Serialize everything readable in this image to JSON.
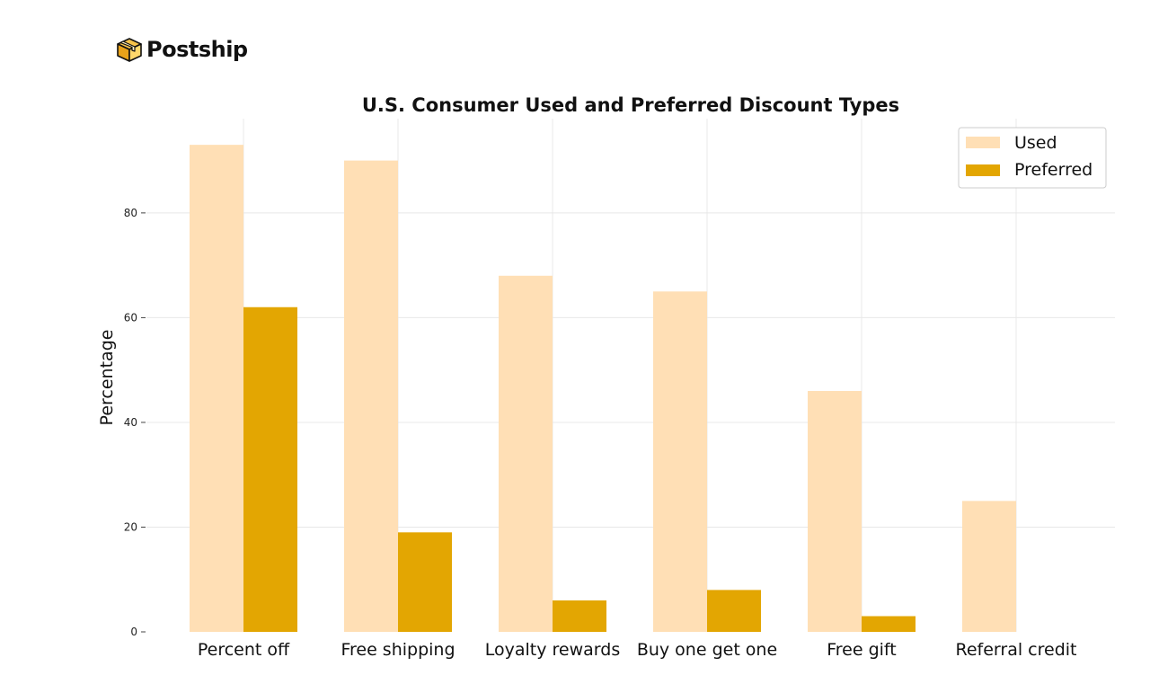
{
  "brand": {
    "name": "Postship",
    "icon": "package-icon"
  },
  "colors": {
    "used": "#FFDFB5",
    "preferred": "#E3A602",
    "grid": "#e8e8e8"
  },
  "chart_data": {
    "type": "bar",
    "title": "U.S. Consumer Used and Preferred Discount Types",
    "xlabel": "",
    "ylabel": "Percentage",
    "ylim": [
      0,
      98
    ],
    "yticks": [
      0,
      20,
      40,
      60,
      80
    ],
    "categories": [
      "Percent off",
      "Free shipping",
      "Loyalty rewards",
      "Buy one get one",
      "Free gift",
      "Referral credit"
    ],
    "series": [
      {
        "name": "Used",
        "values": [
          93,
          90,
          68,
          65,
          46,
          25
        ]
      },
      {
        "name": "Preferred",
        "values": [
          62,
          19,
          6,
          8,
          3,
          0
        ]
      }
    ],
    "legend_position": "top-right",
    "grid": true
  }
}
